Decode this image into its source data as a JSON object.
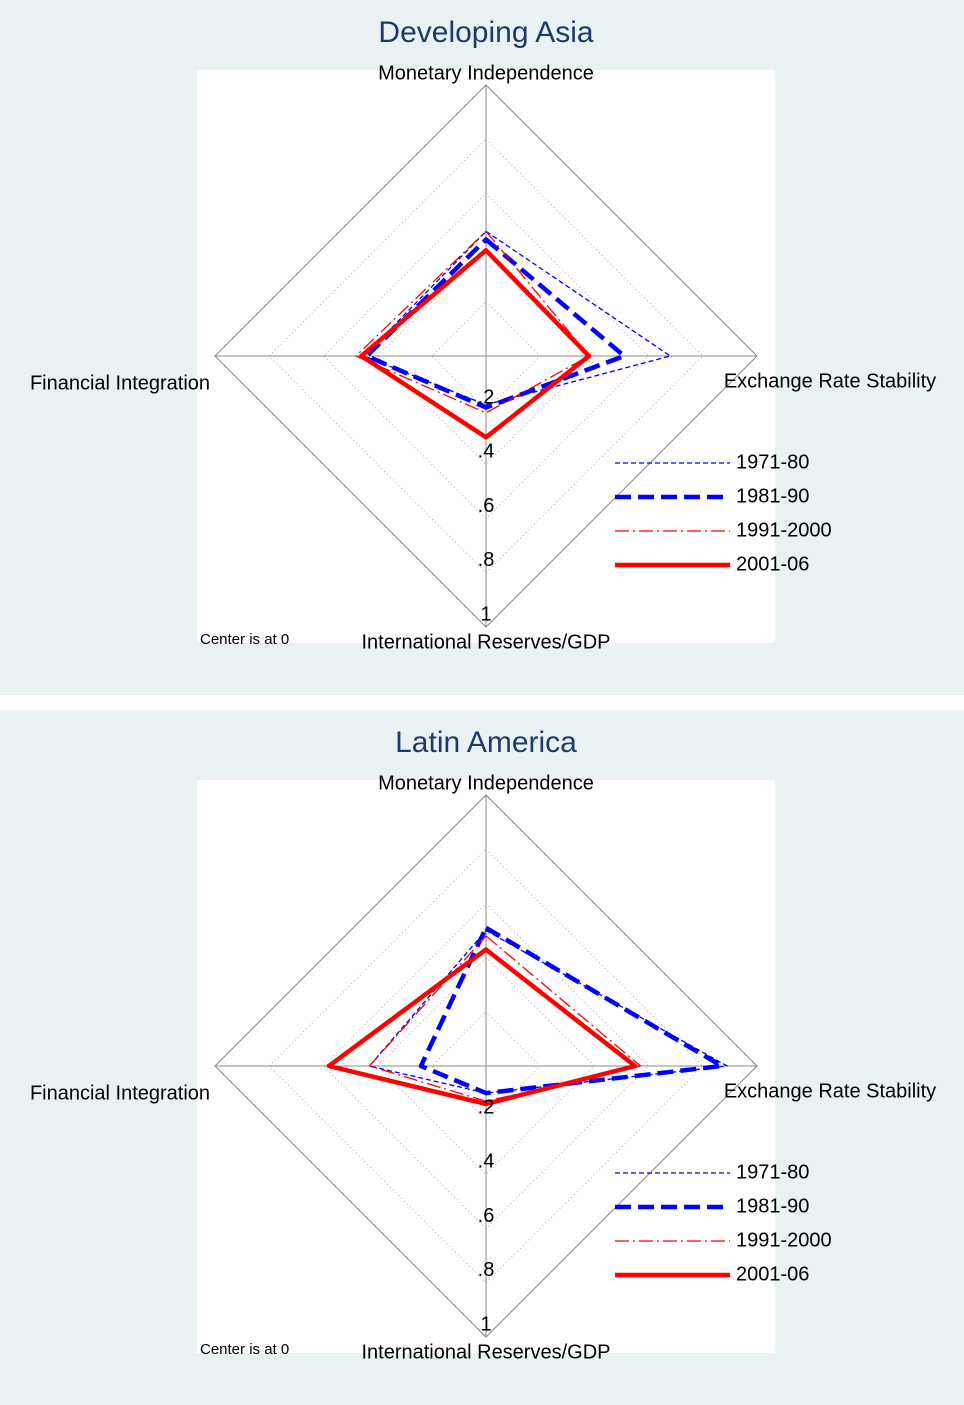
{
  "chart_data": [
    {
      "type": "radar",
      "title": "Developing Asia",
      "axes": [
        "Monetary Independence",
        "Exchange Rate Stability",
        "International Reserves/GDP",
        "Financial Integration"
      ],
      "series": [
        {
          "name": "1971-80",
          "color": "#0000ff",
          "style": "short-dash",
          "weight": "thin",
          "values": [
            0.46,
            0.68,
            0.18,
            0.45
          ]
        },
        {
          "name": "1981-90",
          "color": "#0000ff",
          "style": "long-dash",
          "weight": "thick",
          "values": [
            0.43,
            0.51,
            0.19,
            0.44
          ]
        },
        {
          "name": "1991-2000",
          "color": "#ff0000",
          "style": "dash-dot",
          "weight": "thin",
          "values": [
            0.46,
            0.38,
            0.21,
            0.48
          ]
        },
        {
          "name": "2001-06",
          "color": "#ff0000",
          "style": "solid",
          "weight": "thick",
          "values": [
            0.39,
            0.38,
            0.3,
            0.46
          ]
        }
      ],
      "rlim": [
        0,
        1
      ],
      "rticks": [
        {
          "value": 0.2,
          "label": ".2"
        },
        {
          "value": 0.4,
          "label": ".4"
        },
        {
          "value": 0.6,
          "label": ".6"
        },
        {
          "value": 0.8,
          "label": ".8"
        },
        1
      ],
      "note": "Center is at 0"
    },
    {
      "type": "radar",
      "title": "Latin America",
      "axes": [
        "Monetary Independence",
        "Exchange Rate Stability",
        "International Reserves/GDP",
        "Financial Integration"
      ],
      "series": [
        {
          "name": "1971-80",
          "color": "#0000ff",
          "style": "short-dash",
          "weight": "thin",
          "values": [
            0.5,
            0.89,
            0.1,
            0.43
          ]
        },
        {
          "name": "1981-90",
          "color": "#0000ff",
          "style": "long-dash",
          "weight": "thick",
          "values": [
            0.51,
            0.87,
            0.1,
            0.24
          ]
        },
        {
          "name": "1991-2000",
          "color": "#ff0000",
          "style": "dash-dot",
          "weight": "thin",
          "values": [
            0.48,
            0.57,
            0.13,
            0.43
          ]
        },
        {
          "name": "2001-06",
          "color": "#ff0000",
          "style": "solid",
          "weight": "thick",
          "values": [
            0.43,
            0.55,
            0.14,
            0.58
          ]
        }
      ],
      "rlim": [
        0,
        1
      ],
      "rticks": [
        {
          "value": 0.2,
          "label": ".2"
        },
        {
          "value": 0.4,
          "label": ".4"
        },
        {
          "value": 0.6,
          "label": ".6"
        },
        {
          "value": 0.8,
          "label": ".8"
        },
        1
      ],
      "note": "Center is at 0"
    }
  ]
}
